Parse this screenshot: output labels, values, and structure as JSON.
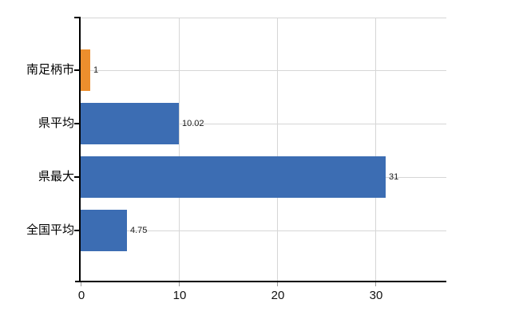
{
  "chart_data": {
    "type": "bar",
    "orientation": "horizontal",
    "title": "",
    "categories": [
      "南足柄市",
      "県平均",
      "県最大",
      "全国平均"
    ],
    "values": [
      1,
      10.02,
      31,
      4.75
    ],
    "value_labels": [
      "1",
      "10.02",
      "31",
      "4.75"
    ],
    "series": [
      {
        "name": "",
        "values": [
          1,
          10.02,
          31,
          4.75
        ]
      }
    ],
    "bar_colors": [
      "#ec8e2d",
      "#3c6db3",
      "#3c6db3",
      "#3c6db3"
    ],
    "x_tick_labels": [
      "0",
      "10",
      "20",
      "30"
    ],
    "x_tick_values": [
      0,
      10,
      20,
      30
    ],
    "xlim": [
      0,
      37.2
    ],
    "xlabel": "",
    "ylabel": "",
    "grid": true,
    "legend": false
  },
  "colors": {
    "background": "#ffffff",
    "axis": "#000000",
    "gridline": "#d6d6d6",
    "tick_minor": "#9a9a9a",
    "category_label": "#000000",
    "value_label": "#1a1a1a",
    "x_tick_label": "#111111"
  }
}
